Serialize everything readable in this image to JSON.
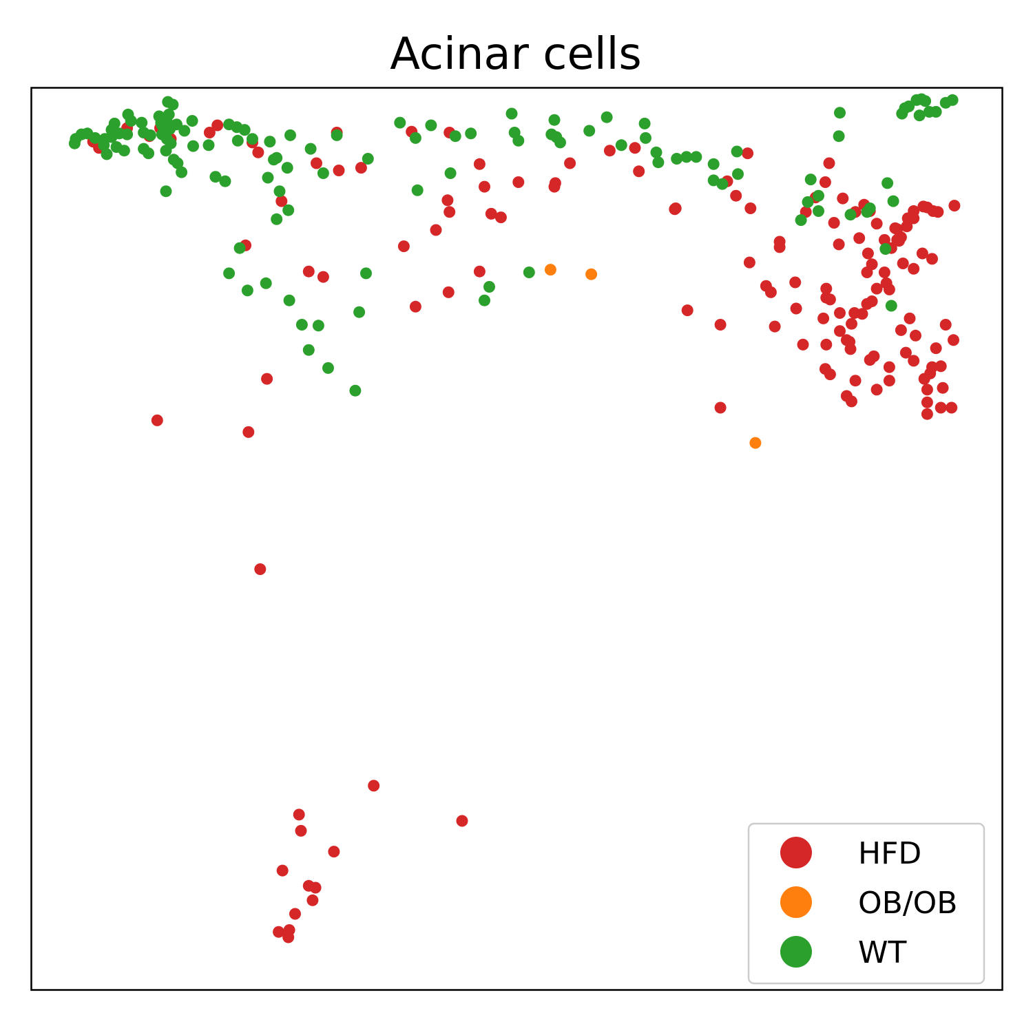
{
  "chart_data": {
    "type": "scatter",
    "title": "Acinar cells",
    "xlabel": "",
    "ylabel": "",
    "xlim": [
      0,
      100
    ],
    "ylim": [
      0,
      100
    ],
    "grid": false,
    "ticks": false,
    "legend_position": "bottom-right",
    "series": [
      {
        "name": "HFD",
        "color": "#d62728",
        "points": [
          [
            7.0,
            93.3
          ],
          [
            6.4,
            94.0
          ],
          [
            9.9,
            95.5
          ],
          [
            12.2,
            94.6
          ],
          [
            13.3,
            95.5
          ],
          [
            14.0,
            95.2
          ],
          [
            14.4,
            94.3
          ],
          [
            18.4,
            95.0
          ],
          [
            19.2,
            95.8
          ],
          [
            22.8,
            93.9
          ],
          [
            23.4,
            92.8
          ],
          [
            29.4,
            91.6
          ],
          [
            31.5,
            95.0
          ],
          [
            25.8,
            87.4
          ],
          [
            22.1,
            82.5
          ],
          [
            34.0,
            91.1
          ],
          [
            31.7,
            90.8
          ],
          [
            39.2,
            95.1
          ],
          [
            43.1,
            95.0
          ],
          [
            46.2,
            91.5
          ],
          [
            43.1,
            86.2
          ],
          [
            42.9,
            87.5
          ],
          [
            46.7,
            89.0
          ],
          [
            41.7,
            84.2
          ],
          [
            50.2,
            89.5
          ],
          [
            47.4,
            86.0
          ],
          [
            48.4,
            85.6
          ],
          [
            55.5,
            91.6
          ],
          [
            53.9,
            89.0
          ],
          [
            54.0,
            89.4
          ],
          [
            59.6,
            93.0
          ],
          [
            62.6,
            90.7
          ],
          [
            62.2,
            93.3
          ],
          [
            66.3,
            86.5
          ],
          [
            46.2,
            79.6
          ],
          [
            30.1,
            79.0
          ],
          [
            28.6,
            79.6
          ],
          [
            38.4,
            82.4
          ],
          [
            39.6,
            75.7
          ],
          [
            43.0,
            77.3
          ],
          [
            22.4,
            61.8
          ],
          [
            24.3,
            67.7
          ],
          [
            13.0,
            63.1
          ],
          [
            73.8,
            92.7
          ],
          [
            77.1,
            82.9
          ],
          [
            71.7,
            89.6
          ],
          [
            71.0,
            73.7
          ],
          [
            67.6,
            75.3
          ],
          [
            72.6,
            88.0
          ],
          [
            74.1,
            86.6
          ],
          [
            74.0,
            80.6
          ],
          [
            75.7,
            78.0
          ],
          [
            76.2,
            77.3
          ],
          [
            78.7,
            78.4
          ],
          [
            79.8,
            86.2
          ],
          [
            80.8,
            87.8
          ],
          [
            81.8,
            89.5
          ],
          [
            82.2,
            91.6
          ],
          [
            83.6,
            87.7
          ],
          [
            82.7,
            85.0
          ],
          [
            83.2,
            82.6
          ],
          [
            84.9,
            86.2
          ],
          [
            86.4,
            86.3
          ],
          [
            85.8,
            87.0
          ],
          [
            87.1,
            84.9
          ],
          [
            85.3,
            83.3
          ],
          [
            86.2,
            81.6
          ],
          [
            87.9,
            83.1
          ],
          [
            86.1,
            79.5
          ],
          [
            86.6,
            80.4
          ],
          [
            86.6,
            76.3
          ],
          [
            84.8,
            75.0
          ],
          [
            86.1,
            76.0
          ],
          [
            87.1,
            77.7
          ],
          [
            87.9,
            79.5
          ],
          [
            88.6,
            82.2
          ],
          [
            89.2,
            83.1
          ],
          [
            89.6,
            83.4
          ],
          [
            89.0,
            84.4
          ],
          [
            90.3,
            85.5
          ],
          [
            90.9,
            86.3
          ],
          [
            91.9,
            86.8
          ],
          [
            92.9,
            86.3
          ],
          [
            93.4,
            86.2
          ],
          [
            95.1,
            86.9
          ],
          [
            89.2,
            84.3
          ],
          [
            89.4,
            83.0
          ],
          [
            90.2,
            84.6
          ],
          [
            90.9,
            85.5
          ],
          [
            92.3,
            86.7
          ],
          [
            91.8,
            81.6
          ],
          [
            90.9,
            79.9
          ],
          [
            92.8,
            81.0
          ],
          [
            88.1,
            78.3
          ],
          [
            88.4,
            77.6
          ],
          [
            89.8,
            80.5
          ],
          [
            94.2,
            73.7
          ],
          [
            93.2,
            71.1
          ],
          [
            91.1,
            72.5
          ],
          [
            90.5,
            74.4
          ],
          [
            89.6,
            73.1
          ],
          [
            90.1,
            70.6
          ],
          [
            90.9,
            69.7
          ],
          [
            92.8,
            69.0
          ],
          [
            93.7,
            69.1
          ],
          [
            92.6,
            68.3
          ],
          [
            92.0,
            67.7
          ],
          [
            92.3,
            66.5
          ],
          [
            93.9,
            66.7
          ],
          [
            92.3,
            65.1
          ],
          [
            92.3,
            63.8
          ],
          [
            93.7,
            64.5
          ],
          [
            94.8,
            64.5
          ],
          [
            95.0,
            72.0
          ],
          [
            85.6,
            74.9
          ],
          [
            84.3,
            71.8
          ],
          [
            84.4,
            71.0
          ],
          [
            86.4,
            69.8
          ],
          [
            88.4,
            69.0
          ],
          [
            88.4,
            67.5
          ],
          [
            84.9,
            67.5
          ],
          [
            87.1,
            66.5
          ],
          [
            86.8,
            70.2
          ],
          [
            84.0,
            65.8
          ],
          [
            84.5,
            65.2
          ],
          [
            81.8,
            68.8
          ],
          [
            82.3,
            68.2
          ],
          [
            81.9,
            71.5
          ],
          [
            81.6,
            74.4
          ],
          [
            83.3,
            75.0
          ],
          [
            82.3,
            76.5
          ],
          [
            83.3,
            73.0
          ],
          [
            84.5,
            73.8
          ],
          [
            84.0,
            72.0
          ],
          [
            78.8,
            75.5
          ],
          [
            76.6,
            73.5
          ],
          [
            77.1,
            82.3
          ],
          [
            71.0,
            64.5
          ],
          [
            79.5,
            71.5
          ],
          [
            81.9,
            77.7
          ],
          [
            81.9,
            76.7
          ],
          [
            25.9,
            13.2
          ],
          [
            31.2,
            15.3
          ],
          [
            27.6,
            19.4
          ],
          [
            27.8,
            17.6
          ],
          [
            28.6,
            11.5
          ],
          [
            29.3,
            11.3
          ],
          [
            29.0,
            9.9
          ],
          [
            27.2,
            8.4
          ],
          [
            26.6,
            6.6
          ],
          [
            25.5,
            6.4
          ],
          [
            26.5,
            5.8
          ],
          [
            35.3,
            22.6
          ],
          [
            44.4,
            18.7
          ],
          [
            23.6,
            46.6
          ],
          [
            66.4,
            86.6
          ]
        ]
      },
      {
        "name": "OB/OB",
        "color": "#ff7f0e",
        "points": [
          [
            53.5,
            79.8
          ],
          [
            57.7,
            79.3
          ],
          [
            74.6,
            60.6
          ]
        ]
      },
      {
        "name": "WT",
        "color": "#2ca02c",
        "points": [
          [
            4.6,
            94.3
          ],
          [
            5.2,
            94.8
          ],
          [
            4.5,
            93.8
          ],
          [
            5.8,
            94.9
          ],
          [
            6.6,
            94.4
          ],
          [
            7.6,
            94.3
          ],
          [
            7.8,
            92.6
          ],
          [
            8.3,
            95.3
          ],
          [
            8.6,
            96.0
          ],
          [
            8.3,
            94.5
          ],
          [
            8.8,
            93.4
          ],
          [
            9.1,
            94.9
          ],
          [
            9.6,
            93.0
          ],
          [
            9.9,
            94.8
          ],
          [
            10.0,
            97.0
          ],
          [
            10.3,
            96.3
          ],
          [
            11.4,
            96.1
          ],
          [
            11.6,
            95.0
          ],
          [
            11.6,
            93.2
          ],
          [
            12.1,
            92.7
          ],
          [
            12.3,
            94.7
          ],
          [
            13.2,
            96.8
          ],
          [
            13.4,
            96.1
          ],
          [
            13.5,
            95.8
          ],
          [
            13.5,
            94.8
          ],
          [
            13.8,
            94.8
          ],
          [
            14.0,
            96.2
          ],
          [
            14.3,
            95.4
          ],
          [
            14.0,
            94.3
          ],
          [
            14.4,
            93.8
          ],
          [
            13.9,
            93.0
          ],
          [
            14.7,
            92.0
          ],
          [
            15.1,
            91.6
          ],
          [
            15.5,
            90.6
          ],
          [
            13.9,
            88.5
          ],
          [
            14.1,
            98.4
          ],
          [
            14.2,
            97.0
          ],
          [
            14.6,
            98.1
          ],
          [
            15.0,
            95.9
          ],
          [
            15.8,
            95.2
          ],
          [
            16.6,
            96.3
          ],
          [
            16.7,
            93.5
          ],
          [
            18.3,
            93.6
          ],
          [
            19.0,
            90.1
          ],
          [
            20.0,
            89.6
          ],
          [
            20.4,
            95.9
          ],
          [
            21.2,
            95.6
          ],
          [
            22.0,
            95.3
          ],
          [
            21.3,
            94.1
          ],
          [
            22.8,
            94.3
          ],
          [
            24.6,
            94.0
          ],
          [
            25.3,
            92.2
          ],
          [
            26.4,
            91.1
          ],
          [
            25.6,
            88.5
          ],
          [
            26.5,
            86.4
          ],
          [
            25.3,
            85.4
          ],
          [
            24.4,
            90.0
          ],
          [
            25.0,
            92.0
          ],
          [
            26.7,
            94.7
          ],
          [
            28.8,
            93.2
          ],
          [
            30.1,
            90.5
          ],
          [
            31.5,
            94.7
          ],
          [
            21.5,
            82.2
          ],
          [
            20.4,
            79.4
          ],
          [
            22.3,
            77.5
          ],
          [
            24.2,
            78.3
          ],
          [
            26.6,
            76.4
          ],
          [
            27.9,
            73.7
          ],
          [
            28.6,
            70.9
          ],
          [
            29.6,
            73.6
          ],
          [
            30.6,
            68.9
          ],
          [
            33.4,
            66.4
          ],
          [
            33.8,
            75.1
          ],
          [
            34.5,
            79.4
          ],
          [
            38.0,
            96.1
          ],
          [
            34.7,
            92.1
          ],
          [
            39.6,
            94.4
          ],
          [
            39.8,
            88.6
          ],
          [
            41.2,
            95.8
          ],
          [
            43.2,
            90.5
          ],
          [
            45.3,
            94.9
          ],
          [
            46.7,
            76.4
          ],
          [
            47.2,
            77.9
          ],
          [
            49.5,
            97.1
          ],
          [
            50.2,
            94.1
          ],
          [
            49.8,
            95.0
          ],
          [
            43.7,
            94.6
          ],
          [
            53.6,
            94.8
          ],
          [
            53.9,
            96.4
          ],
          [
            54.5,
            93.9
          ],
          [
            54.1,
            94.5
          ],
          [
            51.3,
            79.5
          ],
          [
            57.5,
            95.2
          ],
          [
            59.3,
            96.7
          ],
          [
            60.8,
            93.6
          ],
          [
            63.3,
            94.4
          ],
          [
            63.2,
            96.0
          ],
          [
            64.6,
            91.7
          ],
          [
            64.4,
            92.8
          ],
          [
            66.5,
            92.1
          ],
          [
            67.5,
            92.3
          ],
          [
            68.5,
            92.3
          ],
          [
            70.3,
            91.5
          ],
          [
            71.2,
            89.3
          ],
          [
            70.3,
            89.7
          ],
          [
            72.7,
            92.9
          ],
          [
            72.8,
            90.4
          ],
          [
            80.3,
            89.8
          ],
          [
            81.1,
            88.0
          ],
          [
            81.1,
            86.3
          ],
          [
            80.0,
            87.3
          ],
          [
            83.2,
            94.6
          ],
          [
            83.3,
            97.2
          ],
          [
            84.4,
            85.9
          ],
          [
            86.1,
            86.2
          ],
          [
            86.4,
            86.6
          ],
          [
            88.0,
            82.1
          ],
          [
            88.2,
            89.4
          ],
          [
            89.7,
            97.1
          ],
          [
            90.0,
            97.7
          ],
          [
            90.4,
            97.9
          ],
          [
            91.2,
            98.6
          ],
          [
            91.7,
            98.7
          ],
          [
            92.1,
            98.5
          ],
          [
            91.5,
            96.9
          ],
          [
            92.5,
            97.3
          ],
          [
            94.2,
            98.3
          ],
          [
            93.2,
            97.3
          ],
          [
            94.9,
            98.6
          ],
          [
            88.6,
            75.8
          ],
          [
            88.8,
            87.4
          ],
          [
            79.3,
            85.3
          ],
          [
            7.5,
            93.6
          ]
        ]
      }
    ]
  }
}
